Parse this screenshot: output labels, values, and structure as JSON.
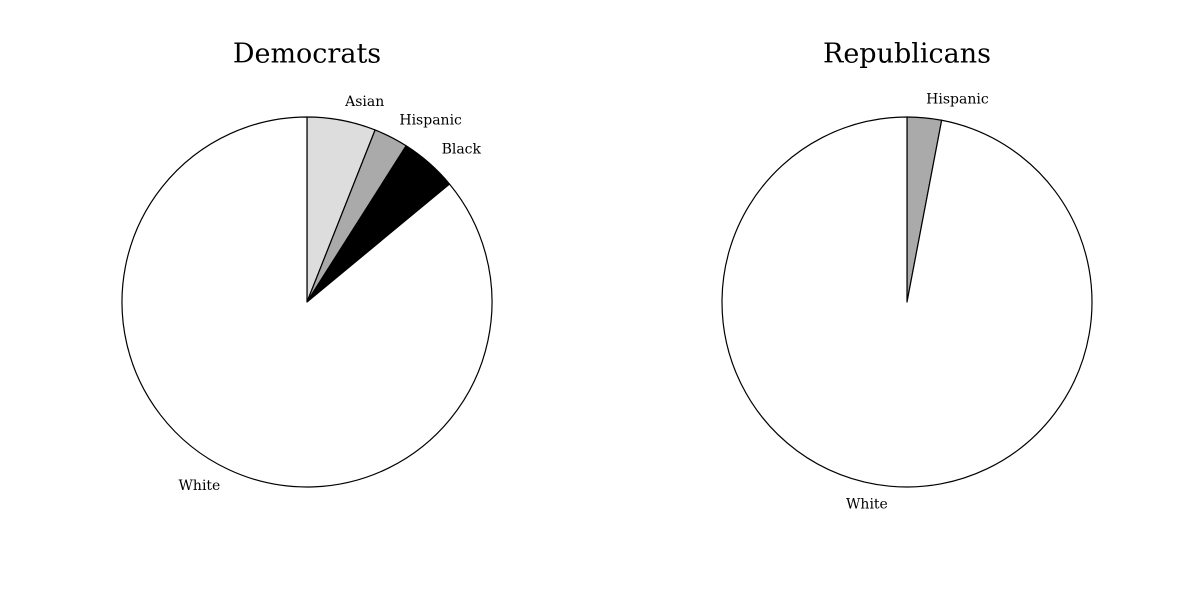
{
  "chart_data": [
    {
      "type": "pie",
      "title": "Democrats",
      "categories": [
        "Asian",
        "Hispanic",
        "Black",
        "White"
      ],
      "values": [
        6,
        3,
        5,
        86
      ],
      "colors": [
        "#dddddd",
        "#aaaaaa",
        "#000000",
        "#ffffff"
      ],
      "startangle": 90,
      "counterclock": false
    },
    {
      "type": "pie",
      "title": "Republicans",
      "categories": [
        "Hispanic",
        "White"
      ],
      "values": [
        3,
        97
      ],
      "colors": [
        "#aaaaaa",
        "#ffffff"
      ],
      "startangle": 90,
      "counterclock": false
    }
  ]
}
